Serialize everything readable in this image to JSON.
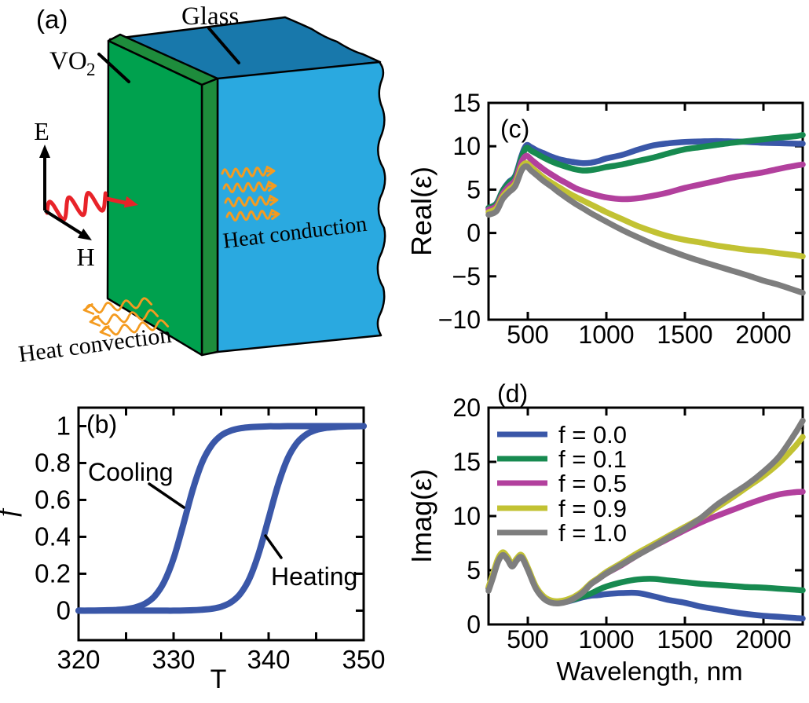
{
  "diagram": {
    "panel": "(a)",
    "labels": {
      "glass": "Glass",
      "vo2_base": "VO",
      "vo2_sub": "2",
      "e_field": "E",
      "h_field": "H",
      "heat_conduction": "Heat conduction",
      "heat_convection": "Heat convection"
    },
    "colors": {
      "vo2_front": "#00A14E",
      "vo2_side": "#1E8C3C",
      "glass_top": "#1878AB",
      "glass_front": "#2AA9E0",
      "light_wave": "#E82329",
      "heat_arrow": "#F49B20",
      "outline": "#000000"
    }
  },
  "chart_data": [
    {
      "panel": "(b)",
      "type": "line",
      "xlabel": "T",
      "ylabel": "f",
      "xlim": [
        320,
        350
      ],
      "ylim": [
        -0.16,
        1.1
      ],
      "xticks": [
        320,
        325,
        330,
        335,
        340,
        345,
        350
      ],
      "xtick_labels": [
        "320",
        "",
        "330",
        "",
        "340",
        "",
        "350"
      ],
      "yticks": [
        0,
        0.2,
        0.4,
        0.6,
        0.8,
        1
      ],
      "ytick_labels": [
        "0",
        "0.2",
        "0.4",
        "0.6",
        "0.8",
        "1"
      ],
      "grid": false,
      "color": "#3A57A8",
      "annotations": [
        {
          "text": "Cooling"
        },
        {
          "text": "Heating"
        }
      ],
      "series": [
        {
          "name": "Cooling",
          "x": [
            320,
            321,
            322,
            323,
            324,
            325,
            326,
            327,
            328,
            329,
            330,
            331,
            332,
            333,
            334,
            335,
            336,
            337,
            338,
            339,
            340,
            341,
            342,
            343,
            344,
            345,
            346,
            347,
            348,
            349,
            350
          ],
          "y": [
            0,
            0,
            0.001,
            0.002,
            0.004,
            0.008,
            0.018,
            0.038,
            0.078,
            0.155,
            0.283,
            0.462,
            0.652,
            0.803,
            0.896,
            0.949,
            0.975,
            0.988,
            0.994,
            0.997,
            0.999,
            0.999,
            1,
            1,
            1,
            1,
            1,
            1,
            1,
            1,
            1
          ]
        },
        {
          "name": "Heating",
          "x": [
            320,
            321,
            322,
            323,
            324,
            325,
            326,
            327,
            328,
            329,
            330,
            331,
            332,
            333,
            334,
            335,
            336,
            337,
            338,
            339,
            340,
            341,
            342,
            343,
            344,
            345,
            346,
            347,
            348,
            349,
            350
          ],
          "y": [
            0,
            0,
            0,
            0,
            0,
            0,
            0,
            0,
            0,
            0,
            0,
            0.001,
            0.002,
            0.005,
            0.01,
            0.021,
            0.044,
            0.09,
            0.176,
            0.317,
            0.5,
            0.683,
            0.824,
            0.91,
            0.956,
            0.979,
            0.99,
            0.995,
            0.998,
            0.999,
            1
          ]
        }
      ]
    },
    {
      "panel": "(c)",
      "type": "line",
      "xlabel": "",
      "ylabel": "Real(ε)",
      "xlim": [
        250,
        2250
      ],
      "ylim": [
        -10,
        15
      ],
      "xticks": [
        500,
        1000,
        1500,
        2000
      ],
      "xtick_labels": [
        "500",
        "1000",
        "1500",
        "2000"
      ],
      "yticks": [
        -10,
        -5,
        0,
        5,
        10,
        15
      ],
      "ytick_labels": [
        "−10",
        "−5",
        "0",
        "5",
        "10",
        "15"
      ],
      "grid": false,
      "x": [
        250,
        300,
        340,
        380,
        420,
        460,
        490,
        520,
        560,
        600,
        650,
        700,
        750,
        800,
        850,
        900,
        950,
        1000,
        1100,
        1200,
        1300,
        1400,
        1500,
        1600,
        1700,
        1800,
        1900,
        2000,
        2100,
        2200,
        2250
      ],
      "series": [
        {
          "name": "f = 0.0",
          "color": "#3A57A8",
          "y": [
            2.9,
            3.4,
            4.9,
            5.9,
            6.6,
            8.9,
            10.1,
            9.9,
            9.5,
            9.2,
            8.8,
            8.5,
            8.3,
            8.15,
            8.05,
            8.1,
            8.3,
            8.6,
            9.0,
            9.6,
            10.1,
            10.35,
            10.5,
            10.55,
            10.6,
            10.55,
            10.5,
            10.4,
            10.35,
            10.3,
            10.3
          ]
        },
        {
          "name": "f = 0.1",
          "color": "#178A50",
          "y": [
            2.9,
            3.35,
            4.85,
            5.8,
            6.5,
            8.7,
            9.8,
            9.5,
            9.1,
            8.7,
            8.25,
            7.9,
            7.6,
            7.35,
            7.2,
            7.25,
            7.4,
            7.6,
            7.9,
            8.3,
            8.7,
            9.2,
            9.65,
            9.9,
            10.15,
            10.4,
            10.6,
            10.8,
            11.0,
            11.15,
            11.3
          ]
        },
        {
          "name": "f = 0.5",
          "color": "#B2409D",
          "y": [
            2.7,
            3.1,
            4.5,
            5.4,
            6.1,
            8.2,
            8.9,
            8.5,
            7.9,
            7.35,
            6.75,
            6.2,
            5.7,
            5.2,
            4.85,
            4.55,
            4.3,
            4.1,
            3.9,
            4.0,
            4.3,
            4.7,
            5.2,
            5.6,
            6.0,
            6.4,
            6.7,
            7.0,
            7.4,
            7.75,
            7.9
          ]
        },
        {
          "name": "f = 0.9",
          "color": "#C2C233",
          "y": [
            2.4,
            2.85,
            4.2,
            5.0,
            5.7,
            7.6,
            8.05,
            7.6,
            7.0,
            6.4,
            5.8,
            5.25,
            4.7,
            4.2,
            3.75,
            3.3,
            2.85,
            2.4,
            1.6,
            0.8,
            0.15,
            -0.4,
            -0.8,
            -1.1,
            -1.45,
            -1.7,
            -1.95,
            -2.1,
            -2.35,
            -2.55,
            -2.7
          ]
        },
        {
          "name": "f = 1.0",
          "color": "#7E7E7E",
          "y": [
            2.1,
            2.5,
            3.9,
            4.7,
            5.4,
            7.2,
            7.7,
            7.2,
            6.6,
            6.0,
            5.35,
            4.65,
            4.0,
            3.4,
            2.85,
            2.3,
            1.8,
            1.3,
            0.35,
            -0.5,
            -1.3,
            -2.0,
            -2.65,
            -3.25,
            -3.8,
            -4.35,
            -4.9,
            -5.5,
            -6.0,
            -6.6,
            -6.9
          ]
        }
      ]
    },
    {
      "panel": "(d)",
      "type": "line",
      "xlabel": "Wavelength, nm",
      "ylabel": "Imag(ε)",
      "xlim": [
        250,
        2250
      ],
      "ylim": [
        0,
        20
      ],
      "xticks": [
        500,
        1000,
        1500,
        2000
      ],
      "xtick_labels": [
        "500",
        "1000",
        "1500",
        "2000"
      ],
      "yticks": [
        0,
        5,
        10,
        15,
        20
      ],
      "ytick_labels": [
        "0",
        "5",
        "10",
        "15",
        "20"
      ],
      "grid": false,
      "legend_position": "upper-left-inside",
      "x": [
        250,
        280,
        310,
        340,
        370,
        400,
        430,
        460,
        500,
        550,
        600,
        650,
        700,
        750,
        800,
        850,
        900,
        950,
        1000,
        1100,
        1200,
        1300,
        1400,
        1500,
        1600,
        1700,
        1800,
        1900,
        2000,
        2100,
        2200,
        2250
      ],
      "series": [
        {
          "name": "f = 0.0",
          "color": "#3A57A8",
          "y": [
            3.3,
            4.6,
            5.9,
            6.5,
            6.1,
            5.45,
            5.95,
            6.25,
            5.1,
            3.4,
            2.45,
            2.05,
            2.0,
            2.1,
            2.3,
            2.5,
            2.65,
            2.7,
            2.8,
            2.9,
            2.9,
            2.6,
            2.25,
            2.0,
            1.65,
            1.4,
            1.15,
            0.95,
            0.8,
            0.7,
            0.6,
            0.55
          ]
        },
        {
          "name": "f = 0.1",
          "color": "#178A50",
          "y": [
            3.35,
            4.65,
            5.95,
            6.55,
            6.15,
            5.5,
            6.0,
            6.3,
            5.15,
            3.45,
            2.5,
            2.1,
            2.05,
            2.15,
            2.35,
            2.6,
            2.85,
            3.2,
            3.5,
            3.9,
            4.15,
            4.2,
            4.05,
            3.9,
            3.75,
            3.65,
            3.55,
            3.45,
            3.4,
            3.3,
            3.2,
            3.15
          ]
        },
        {
          "name": "f = 0.5",
          "color": "#B2409D",
          "y": [
            3.4,
            4.7,
            6.0,
            6.6,
            6.2,
            5.55,
            6.05,
            6.35,
            5.2,
            3.5,
            2.55,
            2.15,
            2.1,
            2.25,
            2.55,
            3.0,
            3.7,
            4.2,
            4.7,
            5.5,
            6.4,
            7.2,
            7.95,
            8.7,
            9.4,
            10.0,
            10.55,
            11.1,
            11.6,
            12.0,
            12.2,
            12.25
          ]
        },
        {
          "name": "f = 0.9",
          "color": "#C2C233",
          "y": [
            3.45,
            4.75,
            6.05,
            6.65,
            6.25,
            5.6,
            6.1,
            6.4,
            5.25,
            3.55,
            2.6,
            2.2,
            2.15,
            2.3,
            2.6,
            3.1,
            3.8,
            4.3,
            4.85,
            5.7,
            6.6,
            7.4,
            8.2,
            9.0,
            9.8,
            10.75,
            11.7,
            12.7,
            13.7,
            14.9,
            16.4,
            17.3
          ]
        },
        {
          "name": "f = 1.0",
          "color": "#7E7E7E",
          "y": [
            3.1,
            4.4,
            5.75,
            6.4,
            6.0,
            5.35,
            5.9,
            6.2,
            5.05,
            3.35,
            2.4,
            2.0,
            1.95,
            2.1,
            2.45,
            2.95,
            3.7,
            4.2,
            4.7,
            5.55,
            6.4,
            7.2,
            8.05,
            8.85,
            9.8,
            11.0,
            12.0,
            12.95,
            14.1,
            15.5,
            17.6,
            18.8
          ]
        }
      ]
    }
  ]
}
